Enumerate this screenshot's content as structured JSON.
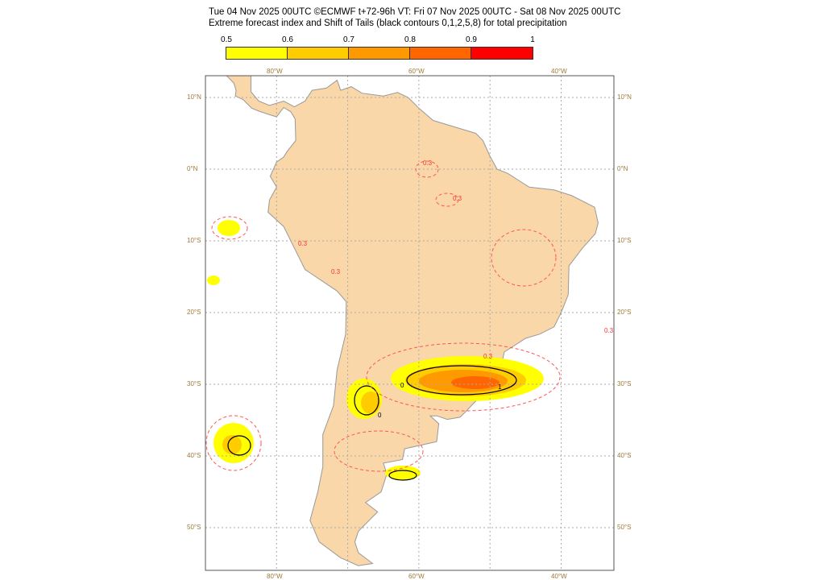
{
  "header": {
    "line1": "Tue 04 Nov 2025 00UTC ©ECMWF t+72-96h  VT: Fri 07 Nov 2025 00UTC - Sat 08 Nov 2025 00UTC",
    "line2": "Extreme forecast index and Shift of Tails (black contours 0,1,2,5,8) for total precipitation"
  },
  "colorbar": {
    "ticks": [
      "0.5",
      "0.6",
      "0.7",
      "0.8",
      "0.9",
      "1"
    ],
    "colors": [
      "#ffff00",
      "#ffcc00",
      "#ff9900",
      "#ff6600",
      "#ff0000"
    ]
  },
  "map": {
    "land_color": "#fad7a8",
    "lon_labels": [
      "80°W",
      "60°W",
      "40°W"
    ],
    "lat_labels": [
      "10°N",
      "0°N",
      "10°S",
      "20°S",
      "30°S",
      "40°S",
      "50°S"
    ],
    "contour_labels": [
      "0.3",
      "0.3",
      "0.3",
      "0.3",
      "0.3",
      "0",
      "0",
      "1"
    ]
  }
}
